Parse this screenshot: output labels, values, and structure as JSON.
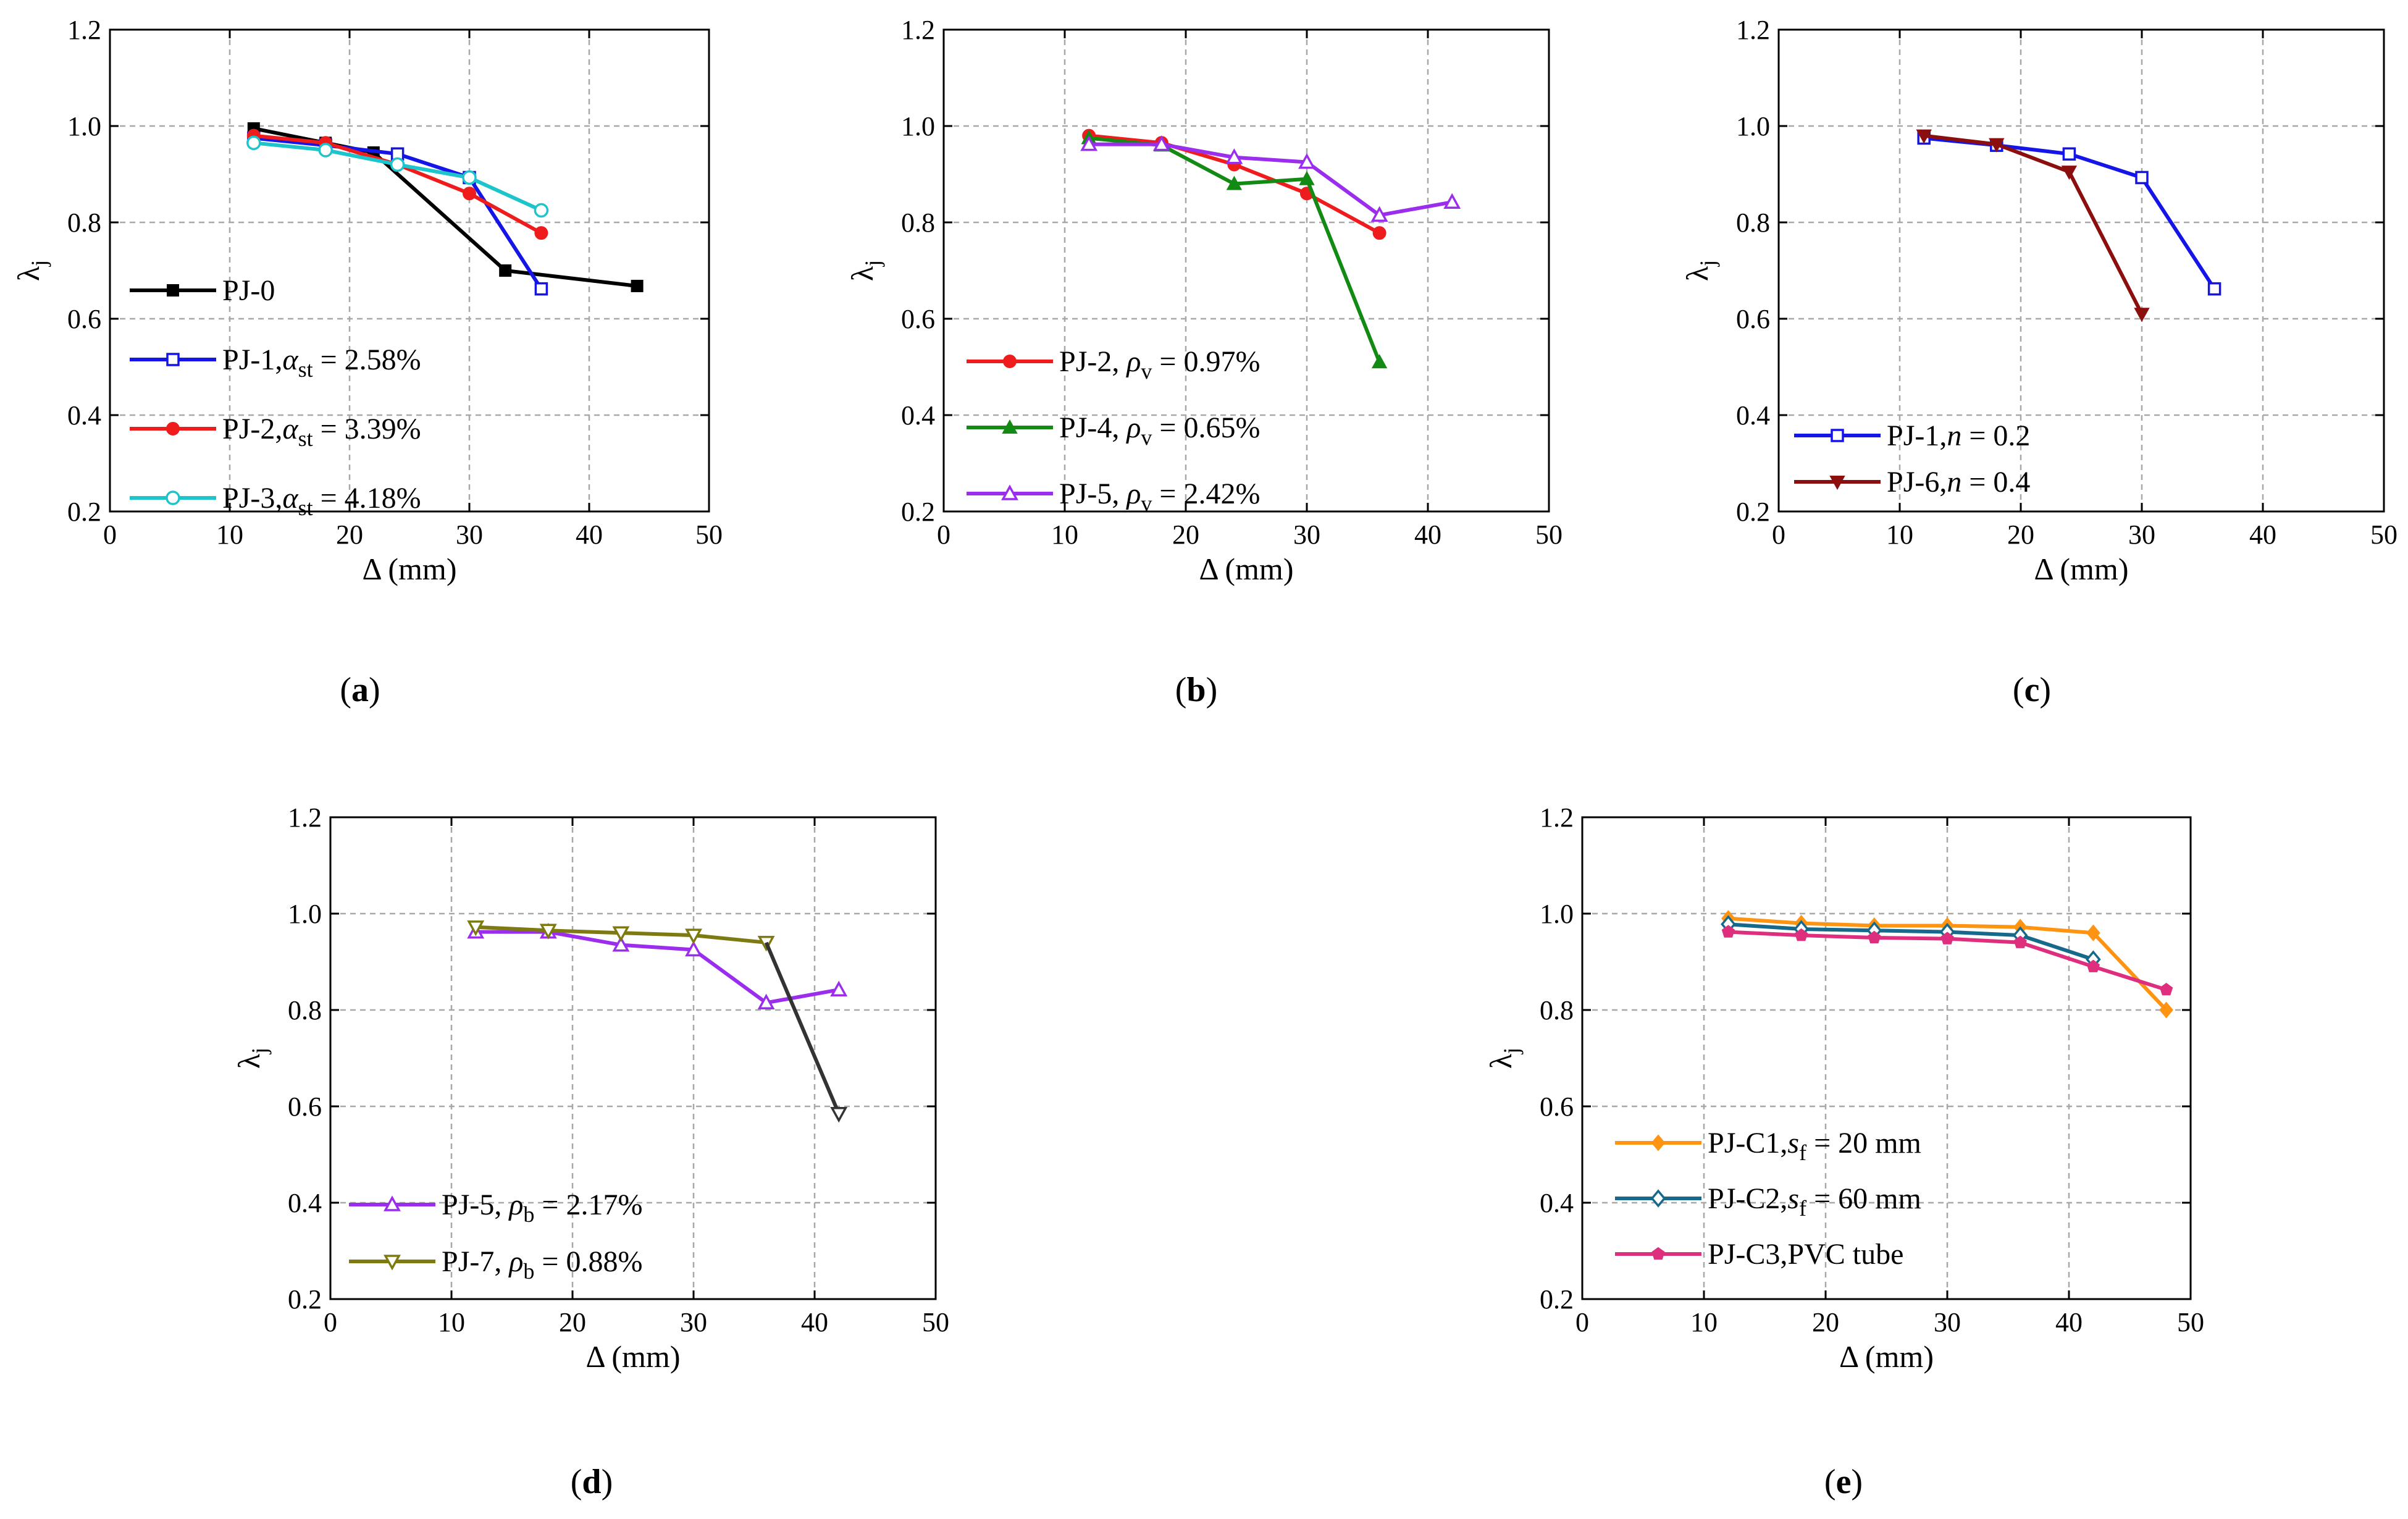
{
  "chart_data": [
    {
      "type": "line",
      "panel_label": "(a)",
      "xlabel": "Δ (mm)",
      "ylabel": "λ_j",
      "xlim": [
        0,
        50
      ],
      "ylim": [
        0.2,
        1.2
      ],
      "xticks": [
        "0",
        "10",
        "20",
        "30",
        "40",
        "50"
      ],
      "yticks": [
        "0.2",
        "0.4",
        "0.6",
        "0.8",
        "1.0",
        "1.2"
      ],
      "grid": true,
      "legend_position": "bottom-left",
      "series": [
        {
          "name": "PJ-0",
          "prefix": "PJ-0",
          "symbol": "",
          "subscript": "",
          "suffix": "",
          "color": "#000000",
          "marker": "square-filled",
          "x": [
            12,
            18,
            22,
            33,
            44
          ],
          "y": [
            0.995,
            0.965,
            0.945,
            0.7,
            0.668
          ]
        },
        {
          "name": "PJ-1, α_st = 2.58%",
          "prefix": "PJ-1,",
          "symbol": "α",
          "subscript": "st",
          "suffix": " = 2.58%",
          "color": "#1515e8",
          "marker": "square-open",
          "x": [
            12,
            18,
            24,
            30,
            36
          ],
          "y": [
            0.975,
            0.96,
            0.942,
            0.893,
            0.662
          ]
        },
        {
          "name": "PJ-2, α_st = 3.39%",
          "prefix": "PJ-2,",
          "symbol": "α",
          "subscript": "st",
          "suffix": " = 3.39%",
          "color": "#ee1c1c",
          "marker": "circle-filled",
          "x": [
            12,
            18,
            24,
            30,
            36
          ],
          "y": [
            0.98,
            0.965,
            0.92,
            0.86,
            0.778
          ]
        },
        {
          "name": "PJ-3, α_st = 4.18%",
          "prefix": "PJ-3,",
          "symbol": "α",
          "subscript": "st",
          "suffix": " = 4.18%",
          "color": "#1ec4cc",
          "marker": "circle-open",
          "x": [
            12,
            18,
            24,
            30,
            36
          ],
          "y": [
            0.965,
            0.95,
            0.92,
            0.893,
            0.825
          ]
        }
      ]
    },
    {
      "type": "line",
      "panel_label": "(b)",
      "xlabel": "Δ (mm)",
      "ylabel": "λ_j",
      "xlim": [
        0,
        50
      ],
      "ylim": [
        0.2,
        1.2
      ],
      "xticks": [
        "0",
        "10",
        "20",
        "30",
        "40",
        "50"
      ],
      "yticks": [
        "0.2",
        "0.4",
        "0.6",
        "0.8",
        "1.0",
        "1.2"
      ],
      "grid": true,
      "legend_position": "bottom-left",
      "series": [
        {
          "name": "PJ-2, ρ_v = 0.97%",
          "prefix": "PJ-2, ",
          "symbol": "ρ",
          "subscript": "v",
          "suffix": " = 0.97%",
          "color": "#ee1c1c",
          "marker": "circle-filled",
          "x": [
            12,
            18,
            24,
            30,
            36
          ],
          "y": [
            0.98,
            0.965,
            0.92,
            0.86,
            0.778
          ]
        },
        {
          "name": "PJ-4, ρ_v = 0.65%",
          "prefix": "PJ-4, ",
          "symbol": "ρ",
          "subscript": "v",
          "suffix": " = 0.65%",
          "color": "#138a13",
          "marker": "triangle-filled",
          "x": [
            12,
            18,
            24,
            30,
            36
          ],
          "y": [
            0.975,
            0.96,
            0.88,
            0.89,
            0.51
          ]
        },
        {
          "name": "PJ-5, ρ_v = 2.42%",
          "prefix": "PJ-5, ",
          "symbol": "ρ",
          "subscript": "v",
          "suffix": " = 2.42%",
          "color": "#9b2ded",
          "marker": "triangle-open",
          "x": [
            12,
            18,
            24,
            30,
            36,
            42
          ],
          "y": [
            0.962,
            0.962,
            0.935,
            0.925,
            0.815,
            0.842
          ]
        }
      ]
    },
    {
      "type": "line",
      "panel_label": "(c)",
      "xlabel": "Δ (mm)",
      "ylabel": "λ_j",
      "xlim": [
        0,
        50
      ],
      "ylim": [
        0.2,
        1.2
      ],
      "xticks": [
        "0",
        "10",
        "20",
        "30",
        "40",
        "50"
      ],
      "yticks": [
        "0.2",
        "0.4",
        "0.6",
        "0.8",
        "1.0",
        "1.2"
      ],
      "grid": true,
      "legend_position": "bottom-left",
      "series": [
        {
          "name": "PJ-1, n = 0.2",
          "prefix": "PJ-1,",
          "symbol": "n",
          "subscript": "",
          "suffix": " = 0.2",
          "color": "#1515e8",
          "marker": "square-open",
          "x": [
            12,
            18,
            24,
            30,
            36
          ],
          "y": [
            0.975,
            0.96,
            0.942,
            0.893,
            0.662
          ]
        },
        {
          "name": "PJ-6, n = 0.4",
          "prefix": "PJ-6,",
          "symbol": "n",
          "subscript": "",
          "suffix": " = 0.4",
          "color": "#8c0f0f",
          "marker": "triangle-down-filled",
          "x": [
            12,
            18,
            24,
            30
          ],
          "y": [
            0.98,
            0.962,
            0.905,
            0.61
          ]
        }
      ]
    },
    {
      "type": "line",
      "panel_label": "(d)",
      "xlabel": "Δ (mm)",
      "ylabel": "λ_j",
      "xlim": [
        0,
        50
      ],
      "ylim": [
        0.2,
        1.2
      ],
      "xticks": [
        "0",
        "10",
        "20",
        "30",
        "40",
        "50"
      ],
      "yticks": [
        "0.2",
        "0.4",
        "0.6",
        "0.8",
        "1.0",
        "1.2"
      ],
      "grid": true,
      "legend_position": "bottom-left",
      "series": [
        {
          "name": "PJ-5, ρ_b = 2.17%",
          "prefix": "PJ-5, ",
          "symbol": "ρ",
          "subscript": "b",
          "suffix": " = 2.17%",
          "color": "#9b2ded",
          "marker": "triangle-open",
          "x": [
            12,
            18,
            24,
            30,
            36,
            42
          ],
          "y": [
            0.962,
            0.962,
            0.935,
            0.925,
            0.815,
            0.842
          ]
        },
        {
          "name": "PJ-7, ρ_b = 0.88%",
          "prefix": "PJ-7, ",
          "symbol": "ρ",
          "subscript": "b",
          "suffix": " = 0.88%",
          "color": "#7d7a12",
          "marker": "triangle-down-open",
          "x": [
            12,
            18,
            24,
            30,
            36
          ],
          "y": [
            0.972,
            0.965,
            0.96,
            0.955,
            0.94
          ]
        },
        {
          "name": "",
          "prefix": "",
          "symbol": "",
          "subscript": "",
          "suffix": "",
          "color": "#333333",
          "marker": "triangle-down-open-end",
          "legend": false,
          "x": [
            36,
            42
          ],
          "y": [
            0.94,
            0.585
          ]
        }
      ]
    },
    {
      "type": "line",
      "panel_label": "(e)",
      "xlabel": "Δ (mm)",
      "ylabel": "λ_j",
      "xlim": [
        0,
        50
      ],
      "ylim": [
        0.2,
        1.2
      ],
      "xticks": [
        "0",
        "10",
        "20",
        "30",
        "40",
        "50"
      ],
      "yticks": [
        "0.2",
        "0.4",
        "0.6",
        "0.8",
        "1.0",
        "1.2"
      ],
      "grid": true,
      "legend_position": "bottom-left",
      "series": [
        {
          "name": "PJ-C1, s_f = 20 mm",
          "prefix": "PJ-C1,",
          "symbol": "s",
          "subscript": "f",
          "suffix": " = 20 mm",
          "color": "#ff9412",
          "marker": "diamond-filled",
          "x": [
            12,
            18,
            24,
            30,
            36,
            42,
            48
          ],
          "y": [
            0.99,
            0.98,
            0.975,
            0.975,
            0.972,
            0.96,
            0.8
          ]
        },
        {
          "name": "PJ-C2, s_f = 60 mm",
          "prefix": "PJ-C2,",
          "symbol": "s",
          "subscript": "f",
          "suffix": " = 60 mm",
          "color": "#17698c",
          "marker": "diamond-open",
          "x": [
            12,
            18,
            24,
            30,
            36,
            42
          ],
          "y": [
            0.978,
            0.968,
            0.965,
            0.962,
            0.955,
            0.905
          ]
        },
        {
          "name": "PJ-C3, PVC tube",
          "prefix": "PJ-C3,PVC tube",
          "symbol": "",
          "subscript": "",
          "suffix": "",
          "color": "#de2f7e",
          "marker": "pentagon-filled",
          "x": [
            12,
            18,
            24,
            30,
            36,
            42,
            48
          ],
          "y": [
            0.962,
            0.955,
            0.95,
            0.948,
            0.94,
            0.89,
            0.842
          ]
        }
      ]
    }
  ]
}
